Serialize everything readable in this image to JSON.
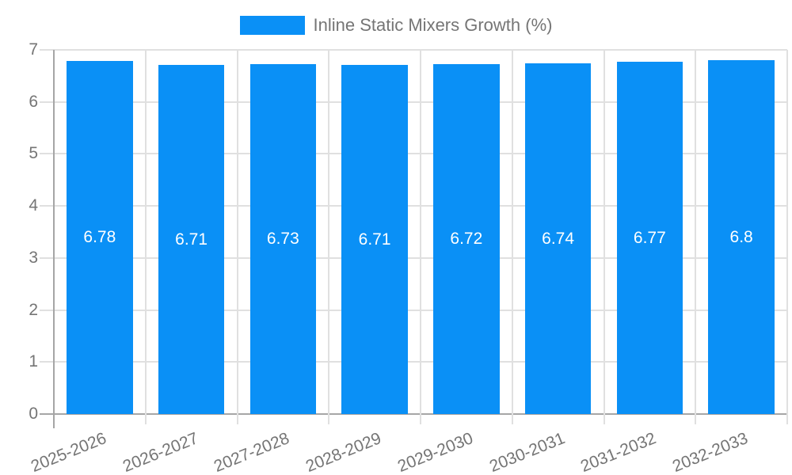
{
  "legend": {
    "label": "Inline Static Mixers Growth (%)"
  },
  "chart_data": {
    "type": "bar",
    "title": "Inline Static Mixers Growth (%)",
    "series_name": "Inline Static Mixers Growth (%)",
    "categories": [
      "2025-2026",
      "2026-2027",
      "2027-2028",
      "2028-2029",
      "2029-2030",
      "2030-2031",
      "2031-2032",
      "2032-2033"
    ],
    "values": [
      6.78,
      6.71,
      6.73,
      6.71,
      6.72,
      6.74,
      6.77,
      6.8
    ],
    "bar_value_labels": [
      "6.78",
      "6.71",
      "6.73",
      "6.71",
      "6.72",
      "6.74",
      "6.77",
      "6.8"
    ],
    "xlabel": "",
    "ylabel": "",
    "ylim": [
      0,
      7
    ],
    "yticks": [
      0,
      1,
      2,
      3,
      4,
      5,
      6,
      7
    ],
    "ytick_labels": [
      "0",
      "1",
      "2",
      "3",
      "4",
      "5",
      "6",
      "7"
    ],
    "grid": true,
    "legend_position": "top-center",
    "value_labels_position": "inside-center",
    "colors": {
      "bar": "#0a90f6",
      "gridline": "#e0e0e0",
      "axis": "#a6a6a6",
      "tick_text": "#757575",
      "value_text": "#ffffff",
      "legend_text": "#757575",
      "background": "#ffffff"
    }
  }
}
